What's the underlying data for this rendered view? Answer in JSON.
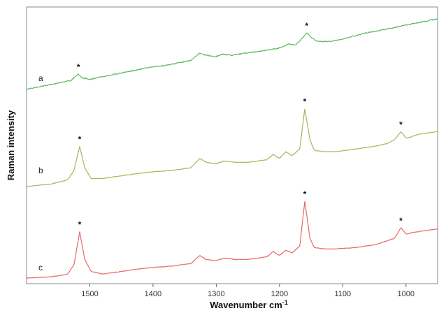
{
  "chart_data": {
    "type": "line",
    "title": "",
    "xlabel": "Wavenumber cm",
    "xlabel_superscript": "-1",
    "ylabel": "Raman intensity",
    "xlim": [
      1600,
      950
    ],
    "x_reversed": true,
    "yticks_shown": false,
    "grid": false,
    "legend": "none",
    "xticks": [
      1500,
      1400,
      1300,
      1200,
      1100,
      1000
    ],
    "peak_marker": "*",
    "series": [
      {
        "label": "a",
        "color": "#5cb85c",
        "points": [
          [
            1600,
            0.04
          ],
          [
            1560,
            0.08
          ],
          [
            1530,
            0.11
          ],
          [
            1518,
            0.16
          ],
          [
            1512,
            0.13
          ],
          [
            1500,
            0.12
          ],
          [
            1480,
            0.14
          ],
          [
            1450,
            0.17
          ],
          [
            1420,
            0.2
          ],
          [
            1400,
            0.22
          ],
          [
            1380,
            0.23
          ],
          [
            1360,
            0.25
          ],
          [
            1340,
            0.27
          ],
          [
            1326,
            0.33
          ],
          [
            1316,
            0.31
          ],
          [
            1300,
            0.3
          ],
          [
            1290,
            0.32
          ],
          [
            1275,
            0.31
          ],
          [
            1250,
            0.33
          ],
          [
            1220,
            0.35
          ],
          [
            1200,
            0.37
          ],
          [
            1185,
            0.4
          ],
          [
            1175,
            0.39
          ],
          [
            1165,
            0.44
          ],
          [
            1157,
            0.49
          ],
          [
            1150,
            0.45
          ],
          [
            1140,
            0.42
          ],
          [
            1120,
            0.42
          ],
          [
            1100,
            0.44
          ],
          [
            1070,
            0.48
          ],
          [
            1040,
            0.51
          ],
          [
            1010,
            0.54
          ],
          [
            990,
            0.56
          ],
          [
            970,
            0.58
          ],
          [
            950,
            0.6
          ]
        ],
        "peaks": [
          1518,
          1157
        ]
      },
      {
        "label": "b",
        "color": "#a3b85c",
        "points": [
          [
            1600,
            0.0
          ],
          [
            1560,
            0.02
          ],
          [
            1535,
            0.05
          ],
          [
            1525,
            0.12
          ],
          [
            1516,
            0.3
          ],
          [
            1508,
            0.14
          ],
          [
            1498,
            0.06
          ],
          [
            1480,
            0.06
          ],
          [
            1450,
            0.08
          ],
          [
            1420,
            0.1
          ],
          [
            1400,
            0.11
          ],
          [
            1370,
            0.12
          ],
          [
            1340,
            0.14
          ],
          [
            1326,
            0.21
          ],
          [
            1316,
            0.18
          ],
          [
            1300,
            0.17
          ],
          [
            1288,
            0.19
          ],
          [
            1270,
            0.18
          ],
          [
            1250,
            0.18
          ],
          [
            1220,
            0.2
          ],
          [
            1210,
            0.24
          ],
          [
            1200,
            0.21
          ],
          [
            1190,
            0.26
          ],
          [
            1180,
            0.23
          ],
          [
            1168,
            0.28
          ],
          [
            1160,
            0.58
          ],
          [
            1152,
            0.35
          ],
          [
            1145,
            0.27
          ],
          [
            1130,
            0.26
          ],
          [
            1110,
            0.26
          ],
          [
            1080,
            0.28
          ],
          [
            1050,
            0.3
          ],
          [
            1030,
            0.32
          ],
          [
            1018,
            0.35
          ],
          [
            1008,
            0.41
          ],
          [
            1000,
            0.36
          ],
          [
            992,
            0.37
          ],
          [
            980,
            0.39
          ],
          [
            965,
            0.4
          ],
          [
            950,
            0.41
          ]
        ],
        "peaks": [
          1516,
          1160,
          1008
        ]
      },
      {
        "label": "c",
        "color": "#e8686a",
        "points": [
          [
            1600,
            0.0
          ],
          [
            1560,
            0.01
          ],
          [
            1535,
            0.03
          ],
          [
            1525,
            0.1
          ],
          [
            1516,
            0.35
          ],
          [
            1508,
            0.14
          ],
          [
            1498,
            0.05
          ],
          [
            1480,
            0.03
          ],
          [
            1450,
            0.05
          ],
          [
            1420,
            0.07
          ],
          [
            1400,
            0.08
          ],
          [
            1370,
            0.09
          ],
          [
            1340,
            0.11
          ],
          [
            1326,
            0.17
          ],
          [
            1316,
            0.14
          ],
          [
            1300,
            0.13
          ],
          [
            1288,
            0.15
          ],
          [
            1270,
            0.14
          ],
          [
            1250,
            0.14
          ],
          [
            1220,
            0.16
          ],
          [
            1210,
            0.2
          ],
          [
            1200,
            0.17
          ],
          [
            1190,
            0.21
          ],
          [
            1180,
            0.19
          ],
          [
            1168,
            0.24
          ],
          [
            1160,
            0.58
          ],
          [
            1152,
            0.3
          ],
          [
            1145,
            0.23
          ],
          [
            1130,
            0.22
          ],
          [
            1110,
            0.22
          ],
          [
            1080,
            0.23
          ],
          [
            1050,
            0.25
          ],
          [
            1030,
            0.28
          ],
          [
            1018,
            0.3
          ],
          [
            1008,
            0.38
          ],
          [
            1000,
            0.33
          ],
          [
            992,
            0.34
          ],
          [
            980,
            0.35
          ],
          [
            965,
            0.36
          ],
          [
            950,
            0.37
          ]
        ],
        "peaks": [
          1516,
          1160,
          1008
        ]
      }
    ]
  }
}
